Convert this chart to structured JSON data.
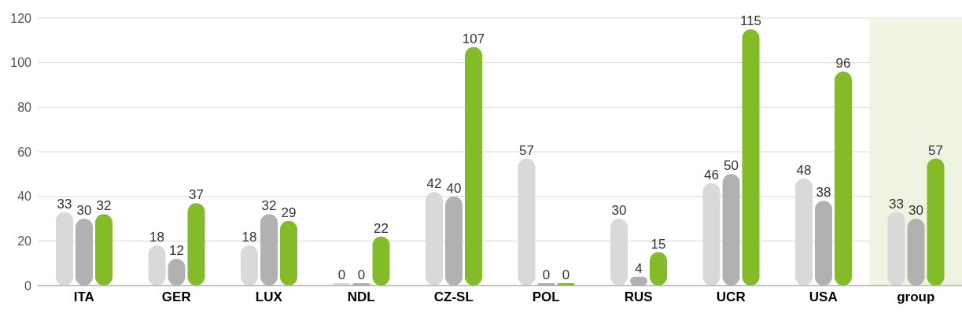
{
  "chart_data": {
    "type": "bar",
    "categories": [
      "ITA",
      "GER",
      "LUX",
      "NDL",
      "CZ-SL",
      "POL",
      "RUS",
      "UCR",
      "USA",
      "group"
    ],
    "series": [
      {
        "color": "#d9d9d9",
        "values": [
          33,
          18,
          18,
          0,
          42,
          57,
          30,
          46,
          48,
          33
        ]
      },
      {
        "color": "#b1b1b1",
        "values": [
          30,
          12,
          32,
          0,
          40,
          0,
          4,
          50,
          38,
          30
        ]
      },
      {
        "color": "#84bb29",
        "values": [
          32,
          37,
          29,
          22,
          107,
          0,
          15,
          115,
          96,
          57
        ]
      }
    ],
    "ylim": [
      0,
      120
    ],
    "yticks": [
      0,
      20,
      40,
      60,
      80,
      100,
      120
    ],
    "grid": "y",
    "data_labels": true,
    "bands": [
      {
        "axis": "x",
        "from": "group",
        "to": "group",
        "color": "#eff3e1"
      }
    ]
  }
}
